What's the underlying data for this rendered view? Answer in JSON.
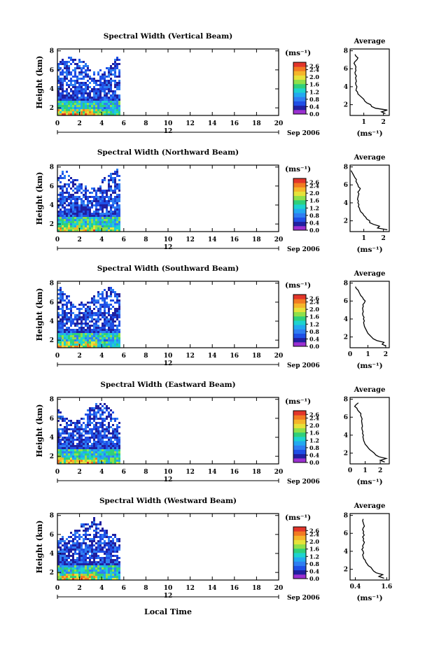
{
  "x_axis": {
    "ticks": [
      "0",
      "2",
      "4",
      "6",
      "8",
      "10",
      "12",
      "14",
      "16",
      "18",
      "20"
    ],
    "center_label": "12",
    "date_label": "Sep 2006",
    "xlabel": "Local Time",
    "range": [
      0,
      20
    ]
  },
  "y_axis": {
    "label": "Height (km)",
    "ticks": [
      "2",
      "4",
      "6",
      "8"
    ],
    "range": [
      1.2,
      8.2
    ]
  },
  "colorbar": {
    "unit_label": "(ms⁻¹)",
    "ticks": [
      "2.6",
      "2.4",
      "2.0",
      "1.6",
      "1.2",
      "0.8",
      "0.4",
      "0.0"
    ],
    "range": [
      0,
      2.8
    ],
    "colors": [
      "#9b30d0",
      "#2020a0",
      "#1f4fe6",
      "#2f7ef2",
      "#23a9f0",
      "#1dd3cf",
      "#2fd07a",
      "#8fe04a",
      "#e6e23a",
      "#f5b52a",
      "#f27a22",
      "#e2352a"
    ]
  },
  "average_panel": {
    "title": "Average",
    "unit_label": "(ms⁻¹)"
  },
  "chart_data": [
    {
      "type": "heatmap",
      "title": "Spectral Width (Vertical Beam)",
      "beam": "vertical",
      "time_range_hours": [
        0,
        5.6
      ],
      "avg_xticks": [
        "1",
        "2"
      ],
      "avg_xlim": [
        0.3,
        2.3
      ],
      "avg_profile": {
        "height_km": [
          1.0,
          1.2,
          1.4,
          1.6,
          1.8,
          2.0,
          2.2,
          2.4,
          2.6,
          2.8,
          3.0,
          3.2,
          3.4,
          3.6,
          3.8,
          4.0,
          4.2,
          4.4,
          4.6,
          4.8,
          5.0,
          5.2,
          5.4,
          5.6,
          5.8,
          6.0,
          6.2,
          6.4,
          6.6,
          6.8,
          7.0,
          7.2,
          7.4,
          7.6
        ],
        "width_ms": [
          2.1,
          1.9,
          2.2,
          1.6,
          1.4,
          1.35,
          1.15,
          1.05,
          1.0,
          0.9,
          0.8,
          0.7,
          0.68,
          0.6,
          0.62,
          0.65,
          0.6,
          0.58,
          0.62,
          0.6,
          0.58,
          0.62,
          0.56,
          0.55,
          0.6,
          0.58,
          0.6,
          0.56,
          0.5,
          0.55,
          0.65,
          0.7,
          0.6,
          0.55
        ]
      }
    },
    {
      "type": "heatmap",
      "title": "Spectral Width (Northward Beam)",
      "beam": "northward",
      "time_range_hours": [
        0,
        5.6
      ],
      "avg_xticks": [
        "1",
        "2"
      ],
      "avg_xlim": [
        0.3,
        2.3
      ],
      "avg_profile": {
        "height_km": [
          1.0,
          1.2,
          1.4,
          1.6,
          1.8,
          2.0,
          2.2,
          2.4,
          2.6,
          2.8,
          3.0,
          3.2,
          3.4,
          3.6,
          3.8,
          4.0,
          4.2,
          4.4,
          4.6,
          4.8,
          5.0,
          5.2,
          5.4,
          5.6,
          5.8,
          6.0,
          6.2,
          6.4,
          6.6,
          6.8,
          7.0,
          7.2,
          7.4,
          7.6
        ],
        "width_ms": [
          2.2,
          1.7,
          1.8,
          1.5,
          1.3,
          1.3,
          1.15,
          1.1,
          1.0,
          0.95,
          0.85,
          0.8,
          0.78,
          0.72,
          0.75,
          0.7,
          0.72,
          0.68,
          0.7,
          0.72,
          0.75,
          0.7,
          0.78,
          0.82,
          0.72,
          0.7,
          0.65,
          0.6,
          0.62,
          0.55,
          0.5,
          0.45,
          0.4,
          0.35
        ]
      }
    },
    {
      "type": "heatmap",
      "title": "Spectral Width (Southward Beam)",
      "beam": "southward",
      "time_range_hours": [
        0,
        5.6
      ],
      "avg_xticks": [
        "0",
        "1",
        "2"
      ],
      "avg_xlim": [
        0,
        2.2
      ],
      "avg_profile": {
        "height_km": [
          1.0,
          1.2,
          1.4,
          1.6,
          1.8,
          2.0,
          2.2,
          2.4,
          2.6,
          2.8,
          3.0,
          3.2,
          3.4,
          3.6,
          3.8,
          4.0,
          4.2,
          4.4,
          4.6,
          4.8,
          5.0,
          5.2,
          5.4,
          5.6,
          5.8,
          6.0,
          6.2,
          6.4,
          6.6,
          6.8,
          7.0,
          7.2,
          7.4,
          7.6
        ],
        "width_ms": [
          2.0,
          1.8,
          1.9,
          1.5,
          1.3,
          1.2,
          1.1,
          1.0,
          0.95,
          0.9,
          0.85,
          0.8,
          0.78,
          0.76,
          0.8,
          0.75,
          0.78,
          0.72,
          0.7,
          0.74,
          0.72,
          0.7,
          0.74,
          0.72,
          0.8,
          0.85,
          0.75,
          0.7,
          0.6,
          0.55,
          0.5,
          0.45,
          0.35,
          0.3
        ]
      }
    },
    {
      "type": "heatmap",
      "title": "Spectral Width (Eastward Beam)",
      "beam": "eastward",
      "time_range_hours": [
        0,
        5.6
      ],
      "avg_xticks": [
        "0",
        "1",
        "2"
      ],
      "avg_xlim": [
        0,
        2.6
      ],
      "avg_profile": {
        "height_km": [
          1.0,
          1.2,
          1.4,
          1.6,
          1.8,
          2.0,
          2.2,
          2.4,
          2.6,
          2.8,
          3.0,
          3.2,
          3.4,
          3.6,
          3.8,
          4.0,
          4.2,
          4.4,
          4.6,
          4.8,
          5.0,
          5.2,
          5.4,
          5.6,
          5.8,
          6.0,
          6.2,
          6.4,
          6.6,
          6.8,
          7.0,
          7.2,
          7.4,
          7.6
        ],
        "width_ms": [
          2.3,
          2.0,
          2.4,
          1.9,
          1.7,
          1.6,
          1.45,
          1.3,
          1.2,
          1.1,
          1.0,
          0.95,
          0.9,
          0.88,
          0.85,
          0.88,
          0.82,
          0.85,
          0.8,
          0.78,
          0.82,
          0.8,
          0.78,
          0.76,
          0.8,
          0.75,
          0.7,
          0.72,
          0.6,
          0.5,
          0.45,
          0.3,
          0.4,
          0.55
        ]
      }
    },
    {
      "type": "heatmap",
      "title": "Spectral Width (Westward Beam)",
      "beam": "westward",
      "time_range_hours": [
        0,
        5.6
      ],
      "avg_xticks": [
        "0.4",
        "1.6"
      ],
      "avg_xlim": [
        0.2,
        1.7
      ],
      "avg_profile": {
        "height_km": [
          1.0,
          1.2,
          1.4,
          1.6,
          1.8,
          2.0,
          2.2,
          2.4,
          2.6,
          2.8,
          3.0,
          3.2,
          3.4,
          3.6,
          3.8,
          4.0,
          4.2,
          4.4,
          4.6,
          4.8,
          5.0,
          5.2,
          5.4,
          5.6,
          5.8,
          6.0,
          6.2,
          6.4,
          6.6,
          6.8,
          7.0,
          7.2,
          7.4,
          7.6
        ],
        "width_ms": [
          1.5,
          1.3,
          1.45,
          1.2,
          1.1,
          1.05,
          1.0,
          0.9,
          0.85,
          0.8,
          0.78,
          0.72,
          0.7,
          0.68,
          0.72,
          0.7,
          0.65,
          0.7,
          0.68,
          0.72,
          0.75,
          0.7,
          0.72,
          0.68,
          0.74,
          0.7,
          0.72,
          0.68,
          0.7,
          0.75,
          0.72,
          0.7,
          0.68,
          0.7
        ]
      }
    }
  ]
}
